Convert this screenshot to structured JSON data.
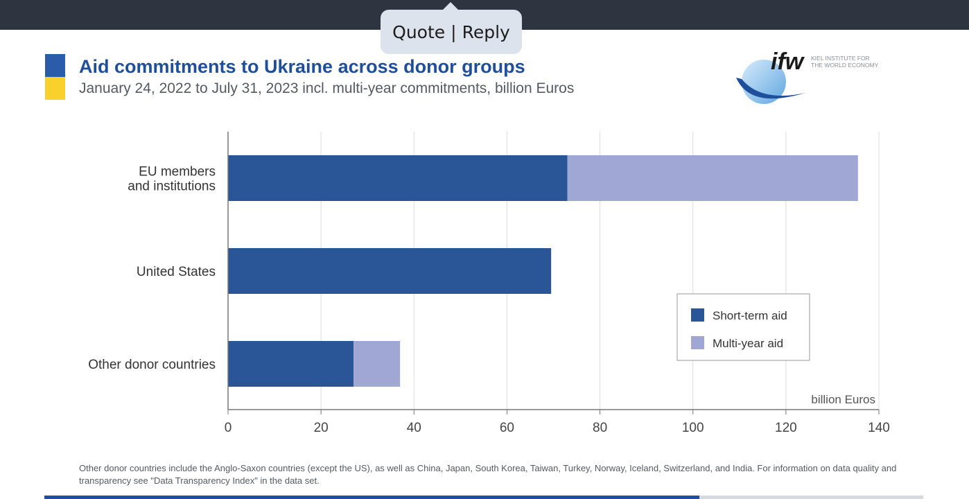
{
  "tooltip": {
    "quote": "Quote",
    "separator": "|",
    "reply": "Reply"
  },
  "header": {
    "title": "Aid commitments to Ukraine across donor groups",
    "subtitle": "January 24, 2022 to July 31, 2023 incl. multi-year commitments, billion Euros"
  },
  "logo": {
    "mark": "ifw",
    "text_line1": "KIEL INSTITUTE FOR",
    "text_line2": "THE WORLD ECONOMY"
  },
  "colors": {
    "short_term": "#2a5597",
    "multi_year": "#a1a7d4",
    "title": "#1f4f9b",
    "flag_blue": "#2a5caa",
    "flag_yellow": "#f8d12c"
  },
  "chart_data": {
    "type": "bar",
    "orientation": "horizontal",
    "stacked": true,
    "categories": [
      "EU members\nand institutions",
      "United States",
      "Other donor countries"
    ],
    "series": [
      {
        "name": "Short-term aid",
        "values": [
          73,
          69.5,
          27
        ]
      },
      {
        "name": "Multi-year aid",
        "values": [
          62.5,
          0,
          10
        ]
      }
    ],
    "xlabel": "billion Euros",
    "xlim": [
      0,
      140
    ],
    "xticks": [
      0,
      20,
      40,
      60,
      80,
      100,
      120,
      140
    ],
    "grid": "vertical",
    "legend_position": "right"
  },
  "footnote": "Other donor countries include the Anglo-Saxon countries (except the US), as well as China, Japan, South Korea, Taiwan, Turkey, Norway, Iceland, Switzerland, and India. For information on data quality and transparency see \"Data Transparency Index\" in the data set.",
  "progress": {
    "fraction": 0.745
  }
}
